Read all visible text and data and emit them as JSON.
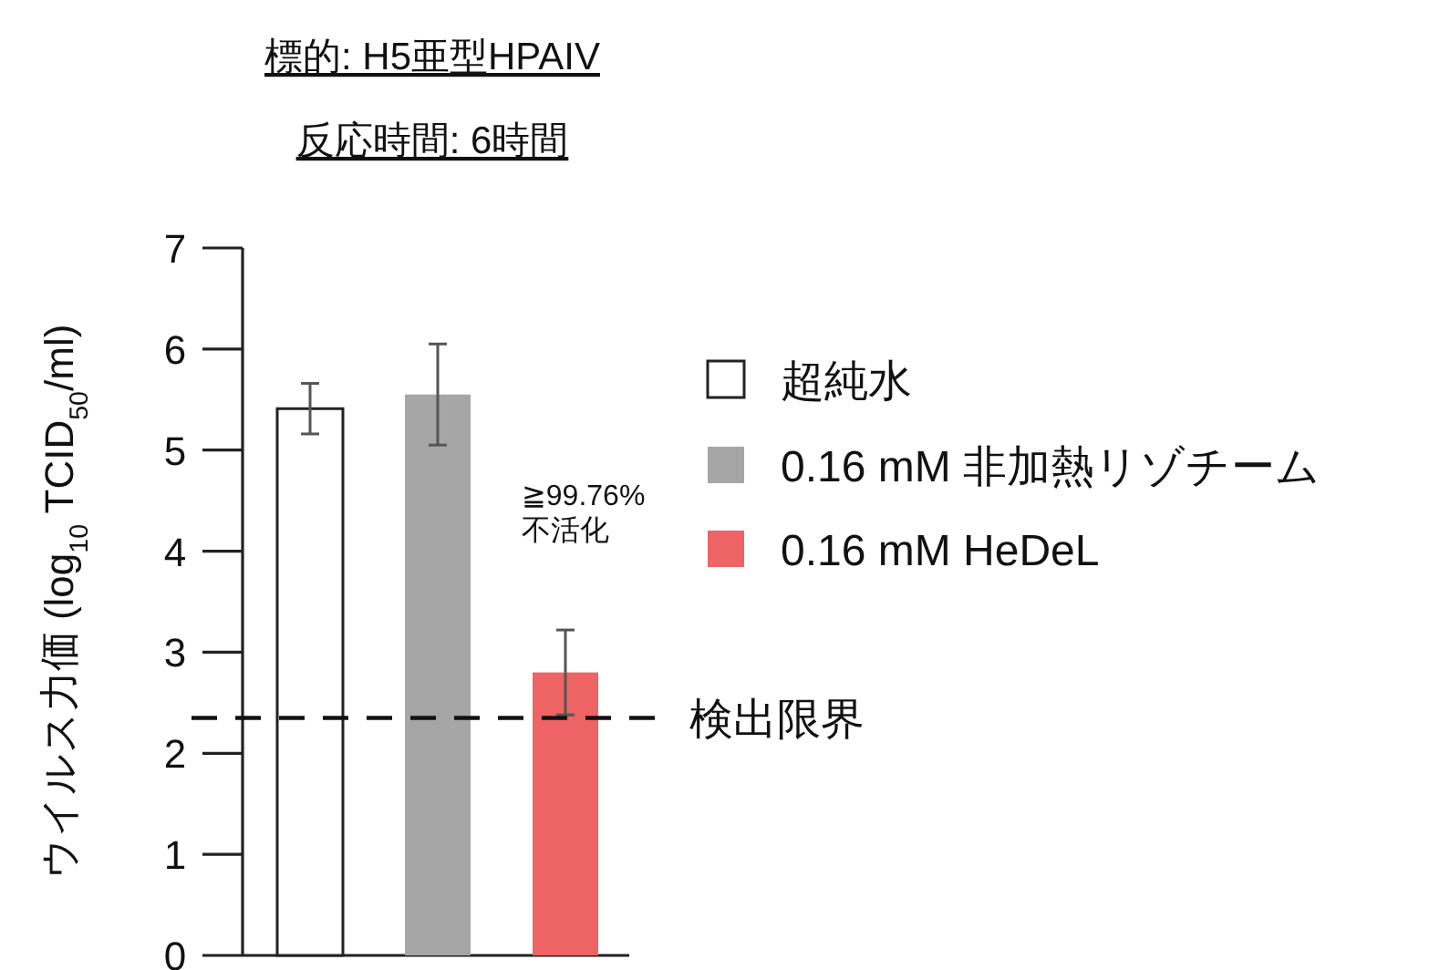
{
  "chart_data": {
    "type": "bar",
    "title": "標的: H5亜型HPAIV",
    "subtitle": "反応時間: 6時間",
    "ylabel": "ウイルス力価 (log$_{10}$ TCID$_{50}$/ml)",
    "categories": [
      null,
      null,
      null
    ],
    "series": [
      {
        "name": "超純水",
        "color": "#ffffff",
        "values": [
          5.41,
          null,
          null
        ],
        "errors": [
          0.25,
          null,
          null
        ]
      },
      {
        "name": "0.16 mM 非加熱リゾチーム",
        "color": "#a6a6a6",
        "values": [
          null,
          5.55,
          null
        ],
        "errors": [
          null,
          0.5,
          null
        ]
      },
      {
        "name": "0.16 mM HeDeL",
        "color": "#ee6363",
        "values": [
          null,
          null,
          2.8
        ],
        "errors": [
          null,
          null,
          0.42
        ]
      }
    ],
    "ylim": [
      0,
      7
    ],
    "yticks": [
      0,
      1,
      2,
      3,
      4,
      5,
      6,
      7
    ],
    "ref_lines": [
      {
        "axis": "y",
        "value": 2.35,
        "label": "検出限界",
        "line_style": "dashed"
      }
    ],
    "annotations": [
      "≧99.76%\n不活化"
    ],
    "legend": "right",
    "grid": false
  }
}
